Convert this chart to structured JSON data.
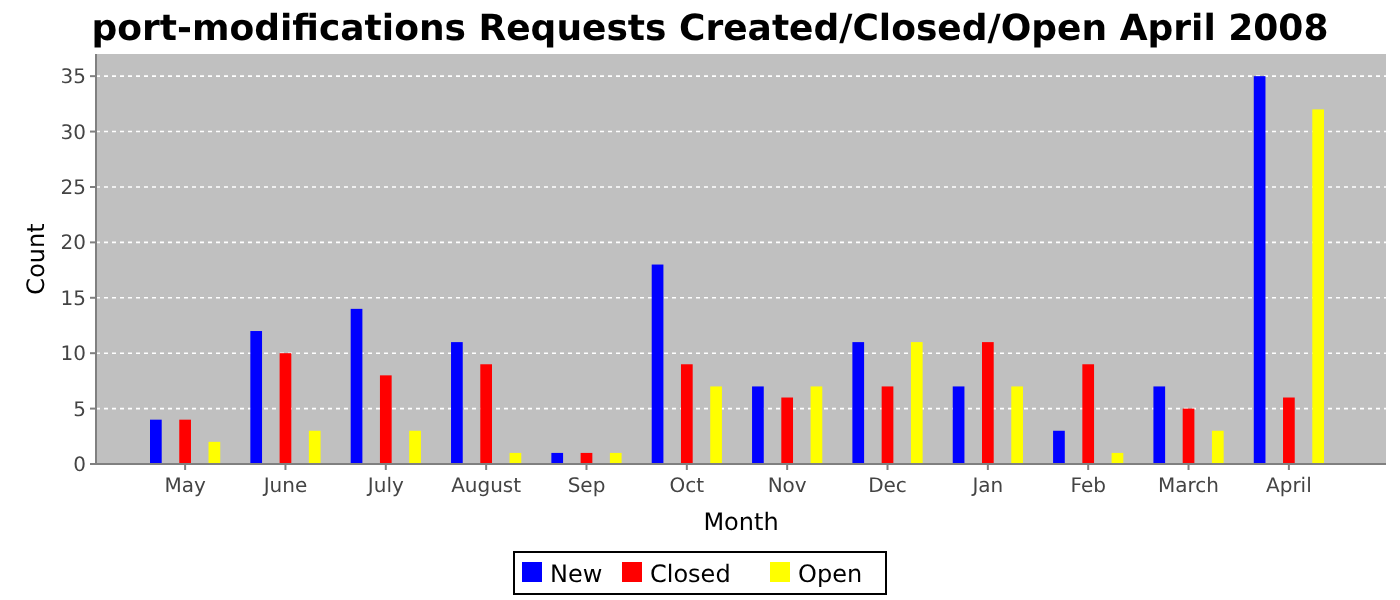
{
  "chart_data": {
    "type": "bar",
    "title": "port-modifications Requests Created/Closed/Open April 2008",
    "xlabel": "Month",
    "ylabel": "Count",
    "categories": [
      "May",
      "June",
      "July",
      "August",
      "Sep",
      "Oct",
      "Nov",
      "Dec",
      "Jan",
      "Feb",
      "March",
      "April"
    ],
    "series": [
      {
        "name": "New",
        "color": "#0000ff",
        "values": [
          4,
          12,
          14,
          11,
          1,
          18,
          7,
          11,
          7,
          3,
          7,
          35
        ]
      },
      {
        "name": "Closed",
        "color": "#ff0000",
        "values": [
          4,
          10,
          8,
          9,
          1,
          9,
          6,
          7,
          11,
          9,
          5,
          6
        ]
      },
      {
        "name": "Open",
        "color": "#ffff00",
        "values": [
          2,
          3,
          3,
          1,
          1,
          7,
          7,
          11,
          7,
          1,
          3,
          32
        ]
      }
    ],
    "ylim": [
      0,
      37
    ],
    "yticks": [
      0,
      5,
      10,
      15,
      20,
      25,
      30,
      35
    ],
    "grid": "y",
    "legend": "bottom"
  }
}
